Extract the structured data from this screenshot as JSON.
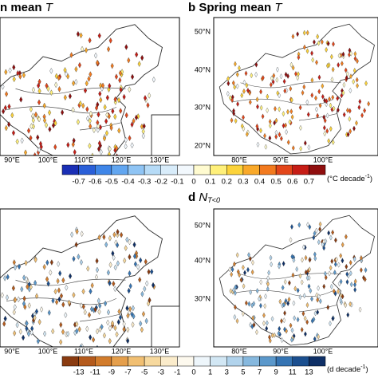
{
  "panels": [
    {
      "title": {
        "prefix": "n mean",
        "variable": "T"
      },
      "lon_labels": [
        "90°E",
        "100°E",
        "110°E",
        "120°E",
        "130°E"
      ]
    },
    {
      "title": {
        "prefix": "b Spring mean",
        "variable": "T"
      },
      "lon_labels": [
        "80°E",
        "90°E",
        "100°E"
      ],
      "lat_labels": [
        "50°N",
        "40°N",
        "30°N",
        "20°N"
      ]
    },
    {
      "title": {},
      "lon_labels": [
        "90°E",
        "100°E",
        "110°E",
        "120°E",
        "130°E"
      ]
    },
    {
      "title": {
        "prefix": "d",
        "variable": "N",
        "subscript": "T<0"
      },
      "lon_labels": [
        "80°E",
        "90°E",
        "100°E"
      ],
      "lat_labels": [
        "50°N",
        "40°N",
        "30°N"
      ]
    }
  ],
  "colorbars": [
    {
      "labels": [
        "-0.7",
        "-0.6",
        "-0.5",
        "-0.4",
        "-0.3",
        "-0.2",
        "-0.1",
        "0",
        "0.1",
        "0.2",
        "0.3",
        "0.4",
        "0.5",
        "0.6",
        "0.7"
      ],
      "unit": {
        "before": "(°C decade",
        "superscript": "-1",
        "after": ")"
      },
      "colors": [
        "#1a2fb5",
        "#2a5fd8",
        "#3f86e8",
        "#62a6f0",
        "#8fc4f4",
        "#b6dbf7",
        "#d8ecfa",
        "#f2f8fd",
        "#fffbd0",
        "#fff07a",
        "#fcd33a",
        "#f9a92a",
        "#f27a1f",
        "#e3461a",
        "#c61d16",
        "#8f0e0e"
      ]
    },
    {
      "labels": [
        "-13",
        "-11",
        "-9",
        "-7",
        "-5",
        "-3",
        "-1",
        "0",
        "1",
        "3",
        "5",
        "7",
        "9",
        "11",
        "13"
      ],
      "unit": {
        "before": "(d decade",
        "superscript": "-1",
        "after": ")"
      },
      "colors": [
        "#8a3b10",
        "#b45a1c",
        "#d27c2c",
        "#e59f4c",
        "#f1bf72",
        "#f7d99e",
        "#fbeccb",
        "#fdf9ee",
        "#eef6fb",
        "#d2e7f4",
        "#b1d3ec",
        "#86b8de",
        "#5b98cb",
        "#3574b3",
        "#1b4f8f",
        "#0e2f66"
      ]
    }
  ]
}
